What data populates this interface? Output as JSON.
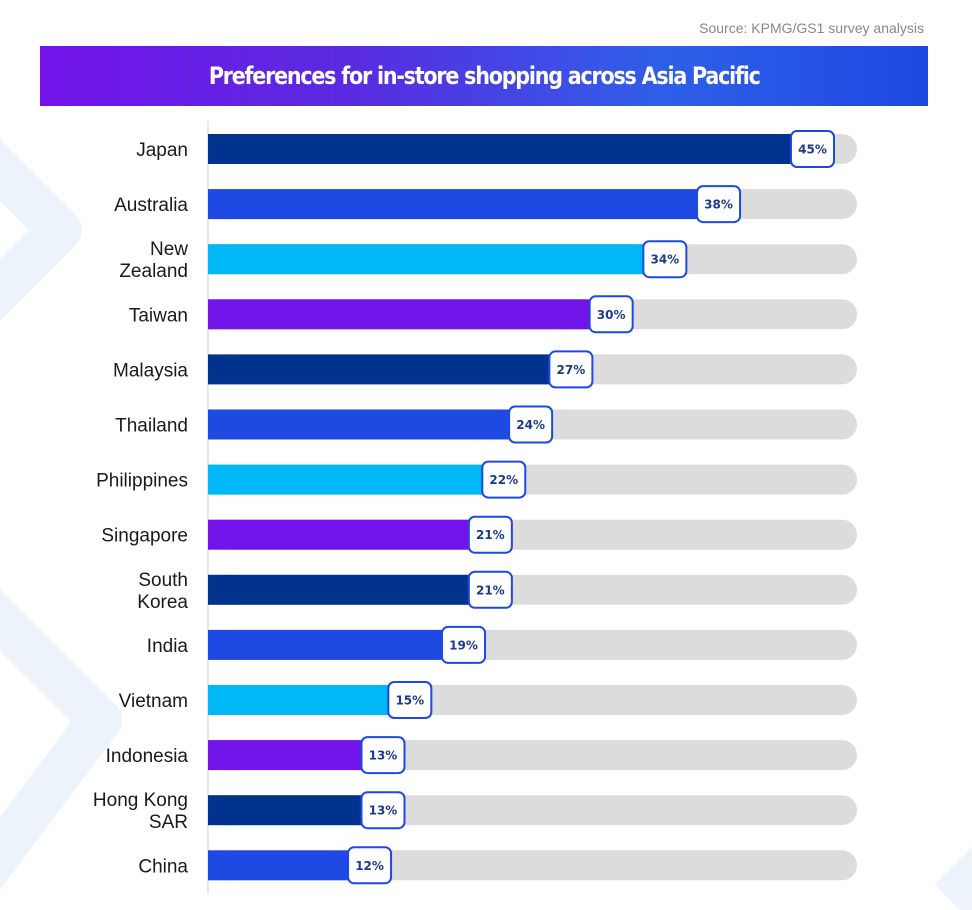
{
  "source": "Source: KPMG/GS1 survey analysis",
  "colors": {
    "navy": "#00338d",
    "blue": "#1e49e2",
    "cyan": "#00b8f5",
    "purple": "#7213ea",
    "track": "#dcdcdc",
    "title_gradient_start": "#7213ea",
    "title_gradient_end": "#1e49e2"
  },
  "chart_data": {
    "type": "bar",
    "orientation": "horizontal",
    "title": "Preferences for in-store shopping across Asia Pacific",
    "categories": [
      [
        "Japan"
      ],
      [
        "Australia"
      ],
      [
        "New",
        "Zealand"
      ],
      [
        "Taiwan"
      ],
      [
        "Malaysia"
      ],
      [
        "Thailand"
      ],
      [
        "Philippines"
      ],
      [
        "Singapore"
      ],
      [
        "South",
        "Korea"
      ],
      [
        "India"
      ],
      [
        "Vietnam"
      ],
      [
        "Indonesia"
      ],
      [
        "Hong Kong",
        "SAR"
      ],
      [
        "China"
      ]
    ],
    "values": [
      45,
      38,
      34,
      30,
      27,
      24,
      22,
      21,
      21,
      19,
      15,
      13,
      13,
      12
    ],
    "value_labels": [
      "45%",
      "38%",
      "34%",
      "30%",
      "27%",
      "24%",
      "22%",
      "21%",
      "21%",
      "19%",
      "15%",
      "13%",
      "13%",
      "12%"
    ],
    "unit": "%",
    "bar_colors": [
      "#00338d",
      "#1e49e2",
      "#00b8f5",
      "#7213ea",
      "#00338d",
      "#1e49e2",
      "#00b8f5",
      "#7213ea",
      "#00338d",
      "#1e49e2",
      "#00b8f5",
      "#7213ea",
      "#00338d",
      "#1e49e2"
    ],
    "xlim": [
      0,
      55
    ],
    "grid": false,
    "legend": "none"
  }
}
